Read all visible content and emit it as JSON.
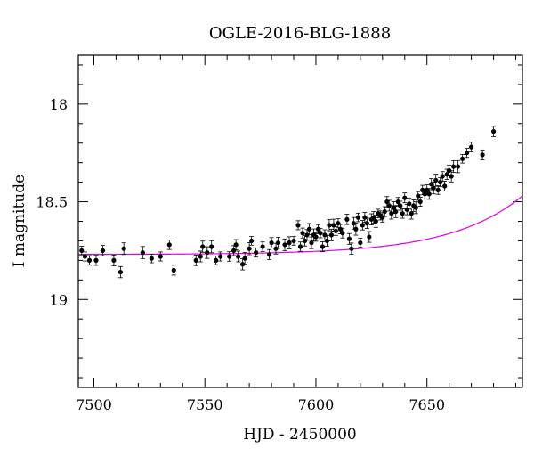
{
  "chart_data": {
    "type": "scatter",
    "title": "OGLE-2016-BLG-1888",
    "xlabel": "HJD - 2450000",
    "ylabel": "I magnitude",
    "xlim": [
      7493,
      7693
    ],
    "ylim": [
      19.45,
      17.75
    ],
    "y_inverted": true,
    "grid": false,
    "xticks": [
      7500,
      7550,
      7600,
      7650
    ],
    "xtick_labels": [
      "7500",
      "7550",
      "7600",
      "7650"
    ],
    "yticks": [
      18,
      18.5,
      19
    ],
    "ytick_labels": [
      "18",
      "18.5",
      "19"
    ],
    "colors": {
      "points": "#000000",
      "model": "#e100e1",
      "axes": "#000000"
    },
    "series": [
      {
        "kind": "points",
        "x": [
          7494.5,
          7496,
          7498,
          7501,
          7504,
          7509,
          7512,
          7513.5,
          7522,
          7526,
          7530,
          7534,
          7536,
          7546,
          7548,
          7549,
          7551,
          7553,
          7555,
          7557,
          7561,
          7563,
          7564,
          7565,
          7567,
          7568,
          7570,
          7571,
          7573,
          7576,
          7579,
          7580,
          7582,
          7583,
          7586,
          7588,
          7590,
          7592,
          7593,
          7594,
          7595,
          7596,
          7597,
          7598,
          7599,
          7600,
          7601,
          7602,
          7603,
          7604,
          7605,
          7606,
          7607,
          7608,
          7609,
          7610,
          7611,
          7612,
          7614,
          7615,
          7616,
          7617,
          7618,
          7619,
          7620,
          7621,
          7622,
          7623,
          7624,
          7625,
          7626,
          7627,
          7628,
          7629,
          7630,
          7631,
          7632,
          7633,
          7634,
          7635,
          7636,
          7637,
          7638,
          7639,
          7640,
          7641,
          7642,
          7643,
          7644,
          7645,
          7646,
          7647,
          7648,
          7649,
          7650,
          7651,
          7652,
          7653,
          7654,
          7655,
          7656,
          7657,
          7658,
          7659,
          7660,
          7661,
          7662,
          7664,
          7666,
          7668,
          7670,
          7675,
          7680
        ],
        "y": [
          18.75,
          18.78,
          18.8,
          18.8,
          18.75,
          18.8,
          18.86,
          18.74,
          18.76,
          18.79,
          18.78,
          18.72,
          18.85,
          18.8,
          18.78,
          18.73,
          18.76,
          18.73,
          18.8,
          18.78,
          18.78,
          18.75,
          18.72,
          18.78,
          18.82,
          18.79,
          18.74,
          18.7,
          18.76,
          18.73,
          18.77,
          18.71,
          18.74,
          18.71,
          18.72,
          18.71,
          18.7,
          18.62,
          18.73,
          18.66,
          18.7,
          18.67,
          18.64,
          18.71,
          18.67,
          18.68,
          18.64,
          18.66,
          18.73,
          18.67,
          18.7,
          18.62,
          18.67,
          18.62,
          18.65,
          18.61,
          18.64,
          18.66,
          18.59,
          18.69,
          18.74,
          18.61,
          18.64,
          18.58,
          18.71,
          18.62,
          18.58,
          18.61,
          18.68,
          18.59,
          18.58,
          18.6,
          18.56,
          18.57,
          18.58,
          18.55,
          18.5,
          18.52,
          18.56,
          18.53,
          18.55,
          18.5,
          18.52,
          18.56,
          18.48,
          18.54,
          18.51,
          18.56,
          18.52,
          18.53,
          18.47,
          18.5,
          18.44,
          18.46,
          18.44,
          18.46,
          18.41,
          18.43,
          18.39,
          18.44,
          18.4,
          18.37,
          18.42,
          18.36,
          18.34,
          18.37,
          18.32,
          18.32,
          18.28,
          18.25,
          18.22,
          18.26,
          18.14
        ]
      },
      {
        "kind": "model-line"
      }
    ]
  }
}
